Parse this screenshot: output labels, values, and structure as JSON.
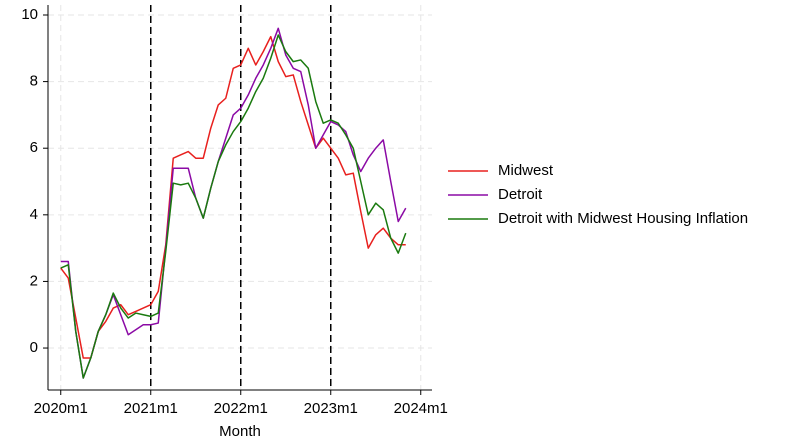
{
  "chart_data": {
    "type": "line",
    "x_label": "Month",
    "x": [
      0,
      1,
      2,
      3,
      4,
      5,
      6,
      7,
      8,
      9,
      10,
      11,
      12,
      13,
      14,
      15,
      16,
      17,
      18,
      19,
      20,
      21,
      22,
      23,
      24,
      25,
      26,
      27,
      28,
      29,
      30,
      31,
      32,
      33,
      34,
      35,
      36,
      37,
      38,
      39,
      40,
      41,
      42,
      43,
      44,
      45,
      46
    ],
    "xlim": [
      -1.7,
      49.5
    ],
    "xticks": [
      {
        "value": 0,
        "label": "2020m1"
      },
      {
        "value": 12,
        "label": "2021m1"
      },
      {
        "value": 24,
        "label": "2022m1"
      },
      {
        "value": 36,
        "label": "2023m1"
      },
      {
        "value": 48,
        "label": "2024m1"
      }
    ],
    "ylim": [
      -1.26,
      10.3
    ],
    "yticks": [
      0,
      2,
      4,
      6,
      8,
      10
    ],
    "grid": true,
    "vlines": [
      12,
      24,
      36
    ],
    "legend": "right",
    "series": [
      {
        "name": "Midwest",
        "color": "#e8201e",
        "values": [
          2.4,
          2.1,
          0.9,
          -0.3,
          -0.3,
          0.5,
          0.8,
          1.2,
          1.3,
          1.0,
          1.1,
          1.2,
          1.3,
          1.7,
          3.1,
          5.7,
          5.8,
          5.9,
          5.7,
          5.7,
          6.6,
          7.3,
          7.5,
          8.4,
          8.5,
          9.0,
          8.5,
          8.9,
          9.35,
          8.6,
          8.15,
          8.2,
          7.4,
          6.7,
          6.0,
          6.3,
          6.0,
          5.7,
          5.2,
          5.25,
          4.1,
          3.0,
          3.4,
          3.6,
          3.3,
          3.1,
          3.1
        ]
      },
      {
        "name": "Detroit",
        "color": "#8b0aa5",
        "values": [
          2.6,
          2.6,
          0.5,
          -0.9,
          -0.3,
          0.5,
          1.0,
          1.6,
          1.0,
          0.4,
          0.55,
          0.7,
          0.7,
          0.75,
          3.0,
          5.4,
          5.4,
          5.4,
          4.5,
          3.9,
          4.8,
          5.6,
          6.3,
          7.0,
          7.2,
          7.6,
          8.1,
          8.5,
          9.0,
          9.6,
          8.8,
          8.4,
          8.3,
          7.3,
          6.0,
          6.4,
          6.8,
          6.7,
          6.5,
          5.8,
          5.3,
          5.7,
          6.0,
          6.25,
          5.0,
          3.8,
          4.2
        ]
      },
      {
        "name": "Detroit with Midwest Housing Inflation",
        "color": "#1a7a0f",
        "values": [
          2.4,
          2.5,
          0.5,
          -0.9,
          -0.3,
          0.5,
          1.0,
          1.65,
          1.2,
          0.9,
          1.05,
          1.0,
          0.95,
          1.05,
          2.9,
          4.95,
          4.9,
          4.95,
          4.5,
          3.9,
          4.8,
          5.6,
          6.1,
          6.5,
          6.8,
          7.2,
          7.7,
          8.1,
          8.7,
          9.4,
          8.9,
          8.6,
          8.65,
          8.4,
          7.4,
          6.75,
          6.85,
          6.75,
          6.4,
          6.0,
          5.0,
          4.0,
          4.35,
          4.15,
          3.3,
          2.85,
          3.45
        ]
      }
    ]
  }
}
